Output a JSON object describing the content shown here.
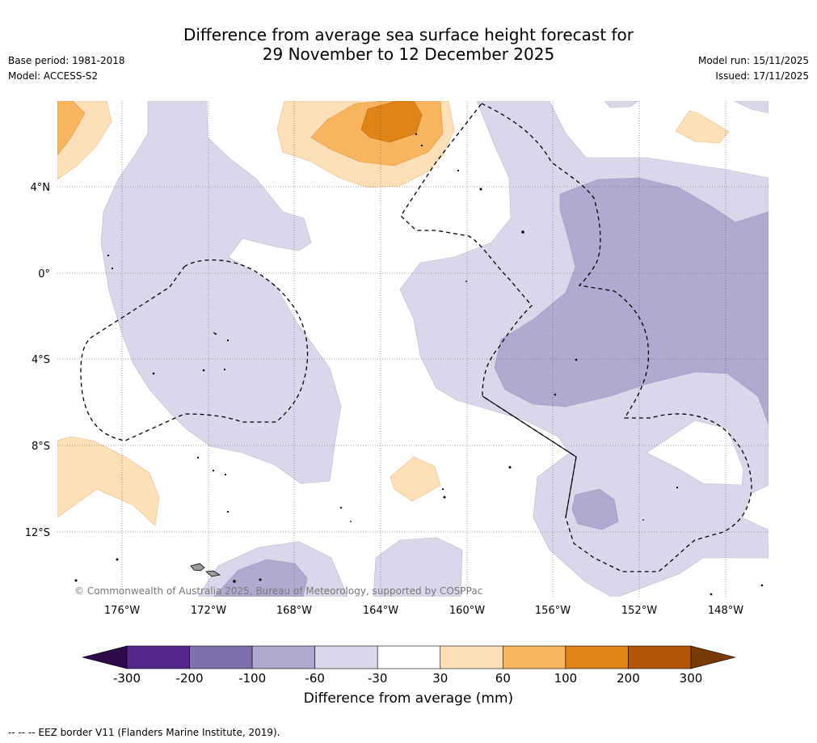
{
  "title": {
    "line1": "Difference from average sea surface height forecast for",
    "line2": "29 November to 12 December 2025"
  },
  "meta_left": {
    "base_period": "Base period: 1981-2018",
    "model": "Model: ACCESS-S2"
  },
  "meta_right": {
    "model_run": "Model run: 15/11/2025",
    "issued": "Issued: 17/11/2025"
  },
  "map": {
    "copyright": "© Commonwealth of Australia 2025, Bureau of Meteorology, supported by COSPPac",
    "lon_ticks": [
      "176°W",
      "172°W",
      "168°W",
      "164°W",
      "160°W",
      "156°W",
      "152°W",
      "148°W"
    ],
    "lat_ticks": [
      "4°N",
      "0°",
      "4°S",
      "8°S",
      "12°S"
    ]
  },
  "colorbar": {
    "title": "Difference from average (mm)",
    "ticks": [
      "-300",
      "-200",
      "-100",
      "-60",
      "-30",
      "30",
      "60",
      "100",
      "200",
      "300"
    ],
    "colors": [
      "#56268a",
      "#8070ad",
      "#b0aad1",
      "#d8d8ea",
      "#ffffff",
      "#fde0b7",
      "#f9b45f",
      "#e08316",
      "#b15607"
    ],
    "extend_low_color": "#2d0a4a",
    "extend_high_color": "#7a3a05"
  },
  "colors": {
    "land": "#9a9a9a"
  },
  "footnote": "--  --  -- EEZ border V11 (Flanders Marine Institute, 2019)."
}
